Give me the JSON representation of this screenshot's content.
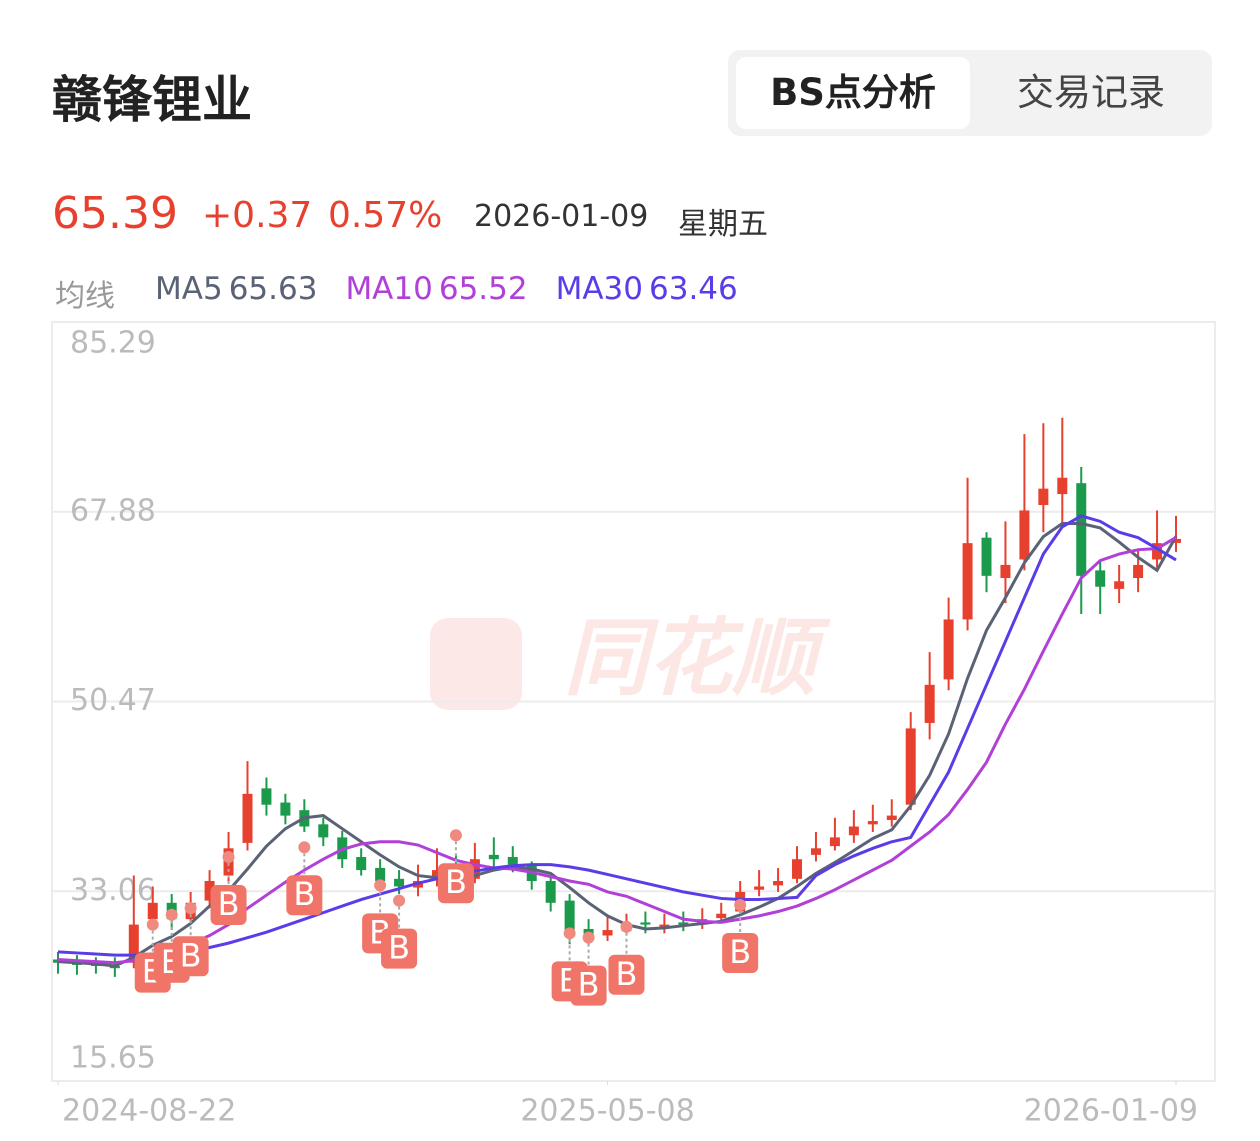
{
  "header": {
    "title": "赣锋锂业",
    "tabs": [
      "BS点分析",
      "交易记录"
    ],
    "price": "65.39",
    "change": "+0.37",
    "change_pct": "0.57%",
    "date": "2026-01-09",
    "weekday": "星期五",
    "ma_legend": {
      "label": "均线",
      "items": [
        {
          "name": "MA5",
          "value": "65.63"
        },
        {
          "name": "MA10",
          "value": "65.52"
        },
        {
          "name": "MA30",
          "value": "63.46"
        }
      ]
    }
  },
  "chart_data": {
    "type": "candlestick",
    "watermark": "同花顺",
    "ylim": [
      15.65,
      85.29
    ],
    "yticks": [
      15.65,
      33.06,
      50.47,
      67.88,
      85.29
    ],
    "grid": true,
    "xlim": [
      0,
      59
    ],
    "xticks": [
      {
        "value": 0,
        "label": "2024-08-22"
      },
      {
        "value": 29,
        "label": "2025-05-08"
      },
      {
        "value": 59,
        "label": "2026-01-09"
      }
    ],
    "up_color": "#e8402e",
    "down_color": "#1a9a4a",
    "open": [
      26.8,
      26.5,
      26.4,
      26.2,
      26.5,
      30.5,
      32.0,
      30.5,
      32.2,
      34.5,
      37.5,
      42.5,
      41.2,
      40.5,
      39.2,
      38.0,
      36.2,
      35.2,
      34.2,
      33.4,
      34.2,
      35.2,
      34.2,
      36.4,
      36.2,
      35.4,
      34.0,
      32.2,
      29.6,
      29.0,
      29.4,
      30.2,
      29.8,
      30.2,
      30.0,
      30.6,
      31.2,
      33.2,
      33.6,
      34.2,
      36.4,
      37.2,
      38.2,
      39.2,
      39.6,
      41.0,
      48.5,
      52.5,
      58.0,
      65.5,
      61.8,
      63.5,
      68.5,
      69.5,
      70.5,
      62.5,
      60.8,
      61.8,
      63.5,
      65.02
    ],
    "high": [
      27.5,
      27.2,
      27.0,
      27.0,
      34.5,
      33.5,
      32.8,
      33.0,
      35.0,
      38.5,
      45.0,
      43.5,
      42.0,
      41.5,
      39.8,
      38.6,
      37.0,
      36.0,
      35.0,
      35.5,
      37.0,
      36.5,
      37.5,
      38.0,
      37.2,
      35.8,
      34.5,
      32.8,
      30.5,
      30.8,
      31.0,
      31.2,
      31.0,
      31.2,
      31.5,
      32.0,
      34.0,
      35.0,
      35.2,
      37.2,
      38.5,
      39.8,
      40.5,
      41.0,
      41.5,
      49.5,
      55.0,
      60.0,
      71.0,
      66.0,
      67.0,
      75.0,
      76.0,
      76.5,
      72.0,
      63.5,
      63.0,
      64.5,
      68.0,
      67.5
    ],
    "low": [
      25.5,
      25.4,
      25.5,
      25.2,
      26.0,
      29.5,
      29.5,
      30.0,
      31.5,
      33.8,
      36.8,
      40.0,
      39.2,
      38.5,
      37.2,
      35.2,
      34.5,
      33.5,
      32.8,
      32.6,
      33.5,
      33.2,
      33.8,
      35.2,
      34.8,
      33.2,
      31.2,
      28.2,
      28.0,
      28.5,
      29.0,
      29.2,
      29.2,
      29.4,
      29.6,
      30.2,
      30.8,
      32.6,
      33.0,
      33.8,
      35.8,
      36.8,
      37.5,
      38.5,
      39.0,
      40.5,
      47.0,
      51.5,
      57.0,
      60.5,
      59.5,
      62.5,
      66.0,
      66.5,
      58.5,
      58.5,
      59.5,
      60.5,
      62.5,
      64.2
    ],
    "close": [
      26.5,
      26.3,
      26.2,
      26.0,
      30.0,
      32.0,
      30.5,
      32.0,
      34.0,
      37.0,
      42.0,
      41.0,
      40.0,
      39.0,
      38.0,
      36.0,
      35.0,
      34.0,
      33.5,
      34.0,
      35.0,
      34.0,
      36.0,
      36.0,
      35.5,
      34.0,
      32.0,
      29.5,
      29.0,
      29.5,
      30.0,
      30.0,
      30.0,
      30.0,
      30.5,
      31.0,
      33.0,
      33.5,
      34.0,
      36.0,
      37.0,
      38.0,
      39.0,
      39.5,
      40.0,
      48.0,
      52.0,
      58.0,
      65.0,
      62.0,
      63.0,
      68.0,
      70.0,
      71.0,
      62.0,
      61.0,
      61.5,
      63.0,
      65.0,
      65.39
    ],
    "series": [
      {
        "name": "MA5",
        "color": "#5a6275",
        "values": [
          26.6,
          26.5,
          26.4,
          26.2,
          27.0,
          28.1,
          28.9,
          30.1,
          31.7,
          33.1,
          35.1,
          37.2,
          38.8,
          39.8,
          40.0,
          38.8,
          37.6,
          36.4,
          35.3,
          34.5,
          34.3,
          34.1,
          34.5,
          35.0,
          35.3,
          35.1,
          34.7,
          33.4,
          32.0,
          30.8,
          30.0,
          29.6,
          29.7,
          29.9,
          30.1,
          30.3,
          30.9,
          31.6,
          32.4,
          33.5,
          34.7,
          35.7,
          36.8,
          37.9,
          38.7,
          40.9,
          43.7,
          47.5,
          52.6,
          57.0,
          60.0,
          63.2,
          65.6,
          66.8,
          66.8,
          66.4,
          65.1,
          63.7,
          62.5,
          65.63
        ]
      },
      {
        "name": "MA10",
        "color": "#b040d8",
        "values": [
          26.8,
          26.7,
          26.6,
          26.5,
          26.7,
          27.2,
          27.6,
          28.2,
          29.0,
          30.0,
          31.5,
          32.7,
          33.9,
          35.0,
          36.0,
          36.9,
          37.4,
          37.6,
          37.6,
          37.3,
          36.6,
          35.9,
          35.5,
          35.2,
          35.1,
          34.8,
          34.4,
          34.0,
          33.7,
          33.0,
          32.6,
          31.9,
          31.2,
          30.5,
          30.3,
          30.2,
          30.5,
          30.8,
          31.2,
          31.7,
          32.4,
          33.2,
          34.1,
          35.0,
          35.9,
          37.2,
          38.5,
          40.1,
          42.4,
          44.9,
          48.4,
          51.6,
          55.1,
          58.5,
          61.8,
          63.4,
          64.0,
          64.4,
          64.5,
          65.52
        ]
      },
      {
        "name": "MA30",
        "color": "#5a3ce8",
        "values": [
          27.5,
          27.4,
          27.3,
          27.2,
          27.2,
          27.3,
          27.4,
          27.6,
          27.9,
          28.3,
          28.8,
          29.3,
          29.9,
          30.5,
          31.1,
          31.7,
          32.3,
          32.8,
          33.3,
          33.8,
          34.2,
          34.6,
          34.9,
          35.2,
          35.4,
          35.5,
          35.5,
          35.3,
          35.0,
          34.6,
          34.2,
          33.8,
          33.4,
          33.0,
          32.7,
          32.4,
          32.3,
          32.3,
          32.4,
          32.5,
          34.5,
          35.5,
          36.3,
          37.0,
          37.6,
          38.0,
          41.0,
          44.0,
          48.0,
          52.0,
          56.0,
          60.0,
          64.0,
          66.5,
          67.5,
          67.0,
          66.0,
          65.5,
          64.5,
          63.46
        ]
      }
    ],
    "buy_points": {
      "label": "B",
      "indices": [
        5,
        6,
        7,
        9,
        13,
        17,
        18,
        21,
        27,
        28,
        30,
        36
      ],
      "prices": [
        30.0,
        30.9,
        31.5,
        36.2,
        37.1,
        33.6,
        32.2,
        38.2,
        29.2,
        28.8,
        29.8,
        31.8
      ]
    }
  }
}
